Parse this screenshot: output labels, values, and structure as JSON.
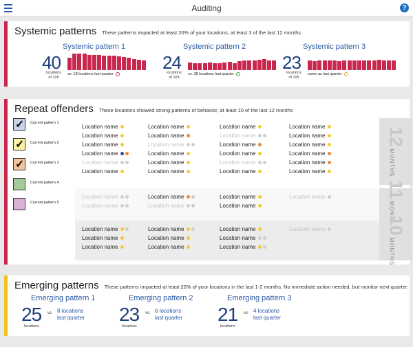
{
  "header": {
    "title": "Auditing"
  },
  "systemic": {
    "title": "Systemic patterns",
    "subtitle": "These patterns impacted at least 20% of your locations, at least 3 of the last 12 months",
    "patterns": [
      {
        "name": "Systemic pattern 1",
        "count": "40",
        "locations": "locations",
        "of": "of 105",
        "note": "vs. 18 locations last quarter",
        "mood": "sad",
        "bars": [
          22,
          30,
          30,
          30,
          28,
          27,
          27,
          26,
          26,
          26,
          25,
          24,
          22,
          20,
          19,
          18
        ]
      },
      {
        "name": "Systemic pattern 2",
        "count": "24",
        "locations": "locations",
        "of": "of 105",
        "note": "vs. 38 locations last quarter",
        "mood": "happy",
        "bars": [
          14,
          13,
          12,
          13,
          14,
          12,
          13,
          14,
          15,
          13,
          16,
          17,
          18,
          17,
          19,
          20,
          18,
          17
        ]
      },
      {
        "name": "Systemic pattern 3",
        "count": "23",
        "locations": "locations",
        "of": "of 105",
        "note": "same as last quarter",
        "mood": "neutral",
        "bars": [
          18,
          16,
          17,
          17,
          18,
          17,
          16,
          17,
          18,
          17,
          18,
          17,
          18,
          17,
          19,
          17,
          18,
          17
        ]
      }
    ]
  },
  "repeat": {
    "title": "Repeat offenders",
    "subtitle": "These locations showed strong patterns of behavior, at least 10 of the last 12 months",
    "legend": [
      {
        "label": "Current pattern 1",
        "color": "#c9d3e8",
        "checked": "✓"
      },
      {
        "label": "Current pattern 2",
        "color": "#fbf2a3",
        "checked": "✓"
      },
      {
        "label": "Current pattern 3",
        "color": "#f5c49a",
        "checked": "✓"
      },
      {
        "label": "Current pattern 4",
        "color": "#a6c99a",
        "checked": ""
      },
      {
        "label": "Current pattern 5",
        "color": "#d9b1d7",
        "checked": ""
      }
    ],
    "months_word": "MONTHS",
    "groups": [
      {
        "months": "12",
        "columns": [
          [
            [
              "Location name",
              "1",
              ""
            ],
            [
              "Location name",
              "1",
              ""
            ],
            [
              "Location name",
              "1",
              ""
            ],
            [
              "Location name",
              "3 2",
              ""
            ],
            [
              "Location name",
              "g g",
              "f"
            ],
            [
              "Location name",
              "1",
              ""
            ]
          ],
          [
            [
              "Location name",
              "1",
              ""
            ],
            [
              "Location name",
              "2",
              ""
            ],
            [
              "Location name",
              "g g",
              "f"
            ],
            [
              "Location name",
              "1",
              ""
            ],
            [
              "Location name",
              "1",
              ""
            ],
            [
              "Location name",
              "1",
              ""
            ]
          ],
          [
            [
              "Location name",
              "1",
              ""
            ],
            [
              "Location name",
              "g g",
              "f"
            ],
            [
              "Location name",
              "2",
              ""
            ],
            [
              "Location name",
              "1",
              ""
            ],
            [
              "Location name",
              "g g",
              "f"
            ],
            [
              "Location name",
              "1",
              ""
            ]
          ],
          [
            [
              "Location name",
              "1",
              ""
            ],
            [
              "Location name",
              "1",
              ""
            ],
            [
              "Location name",
              "1",
              ""
            ],
            [
              "Location name",
              "2",
              ""
            ],
            [
              "Location name",
              "2",
              ""
            ],
            [
              "Location name",
              "1",
              ""
            ]
          ]
        ]
      },
      {
        "months": "11",
        "columns": [
          [
            [
              "Location name",
              "g g",
              "f"
            ],
            [
              "Location name",
              "g g",
              "f"
            ]
          ],
          [
            [
              "Location name",
              "2 g",
              ""
            ],
            [
              "Location name",
              "g g",
              "f"
            ]
          ],
          [
            [
              "Location name",
              "1",
              ""
            ],
            [
              "Location name",
              "1",
              ""
            ]
          ],
          [
            [
              "Location name",
              "g",
              "f"
            ]
          ]
        ]
      },
      {
        "months": "10",
        "columns": [
          [
            [
              "Location name",
              "1 g",
              ""
            ],
            [
              "Location name",
              "1",
              ""
            ],
            [
              "Location name",
              "1",
              ""
            ]
          ],
          [
            [
              "Location name",
              "1 g",
              ""
            ],
            [
              "Location name",
              "1",
              ""
            ],
            [
              "Location name",
              "1",
              ""
            ]
          ],
          [
            [
              "Location name",
              "1",
              ""
            ],
            [
              "Location name",
              "g g",
              ""
            ],
            [
              "Location name",
              "1 g",
              ""
            ]
          ],
          [
            [
              "Location name",
              "g",
              "f"
            ]
          ]
        ]
      }
    ]
  },
  "emerging": {
    "title": "Emerging patterns",
    "subtitle": "These patterns impacted at least 20% of your locations in the last 1-2 months. No immediate action needed, but monitor next quarter.",
    "patterns": [
      {
        "name": "Emerging pattern 1",
        "count": "25",
        "locations": "locations",
        "vs": "vs.",
        "last1": "8 locations",
        "last2": "last quarter"
      },
      {
        "name": "Emerging pattern 2",
        "count": "23",
        "locations": "locations",
        "vs": "vs.",
        "last1": "6 locations",
        "last2": "last quarter"
      },
      {
        "name": "Emerging pattern 3",
        "count": "21",
        "locations": "locations",
        "vs": "vs.",
        "last1": "4 locations",
        "last2": "last quarter"
      }
    ]
  },
  "colors": {
    "accent_red": "#c8284e",
    "accent_yellow": "#f1c11d",
    "number_blue": "#1c3f7a"
  },
  "icons": {
    "menu": "hamburger-icon",
    "help": "help-icon",
    "checkbox": "check-icon"
  }
}
